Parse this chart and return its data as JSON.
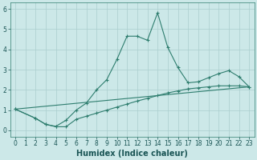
{
  "xlabel": "Humidex (Indice chaleur)",
  "line1_x": [
    0,
    2,
    3,
    4,
    5,
    6,
    7,
    8,
    9,
    10,
    11,
    12,
    13,
    14,
    15,
    16,
    17,
    18,
    19,
    20,
    21,
    22,
    23
  ],
  "line1_y": [
    1.05,
    0.6,
    0.3,
    0.2,
    0.5,
    1.0,
    1.35,
    2.0,
    2.5,
    3.5,
    4.65,
    4.65,
    4.45,
    5.8,
    4.1,
    3.1,
    2.35,
    2.4,
    2.6,
    2.8,
    2.95,
    2.65,
    2.15
  ],
  "line2_x": [
    0,
    2,
    3,
    4,
    5,
    6,
    7,
    8,
    9,
    10,
    11,
    12,
    13,
    14,
    15,
    16,
    17,
    18,
    19,
    20,
    21,
    22,
    23
  ],
  "line2_y": [
    1.05,
    0.6,
    0.3,
    0.18,
    0.18,
    0.55,
    0.7,
    0.85,
    1.0,
    1.15,
    1.3,
    1.45,
    1.58,
    1.72,
    1.85,
    1.95,
    2.05,
    2.1,
    2.15,
    2.2,
    2.2,
    2.2,
    2.15
  ],
  "line3_x": [
    0,
    23
  ],
  "line3_y": [
    1.05,
    2.15
  ],
  "line_color": "#2e7d6e",
  "bg_color": "#cce8e8",
  "grid_major_color": "#aacece",
  "grid_minor_color": "#bbdada",
  "xlim": [
    -0.5,
    23.5
  ],
  "ylim": [
    -0.3,
    6.3
  ],
  "xticks": [
    0,
    1,
    2,
    3,
    4,
    5,
    6,
    7,
    8,
    9,
    10,
    11,
    12,
    13,
    14,
    15,
    16,
    17,
    18,
    19,
    20,
    21,
    22,
    23
  ],
  "yticks": [
    0,
    1,
    2,
    3,
    4,
    5,
    6
  ],
  "tick_fontsize": 5.5,
  "label_fontsize": 7,
  "marker": "+",
  "markersize": 3.5,
  "linewidth": 0.8
}
